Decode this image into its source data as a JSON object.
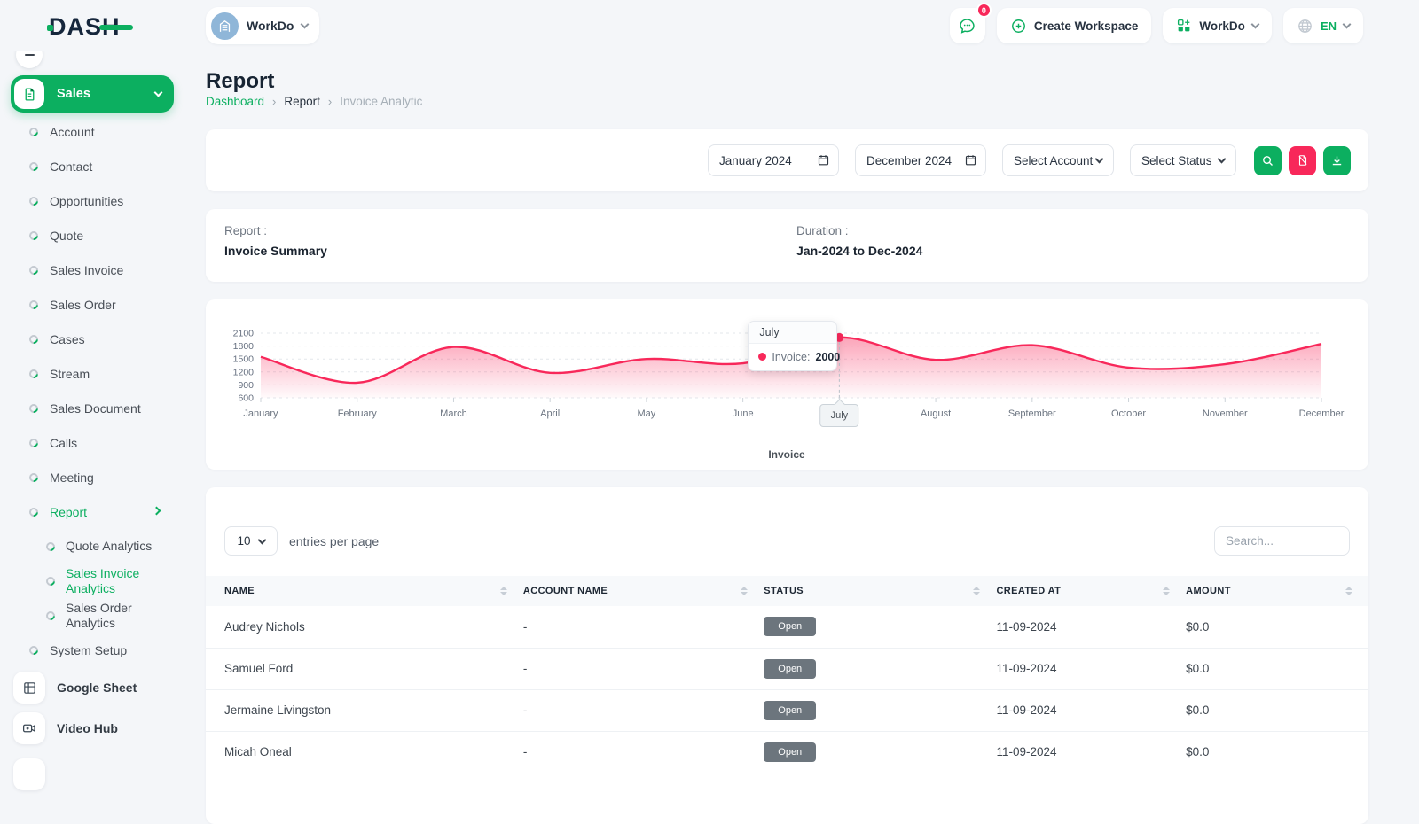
{
  "colors": {
    "primary_green": "#0CAF60",
    "accent_pink": "#F8285A",
    "badge_gray": "#6C757D",
    "dark_navy": "#15263C"
  },
  "header": {
    "logo_text": "DASH",
    "workspace": {
      "name": "WorkDo"
    },
    "chat_badge": "0",
    "create_workspace_label": "Create Workspace",
    "app_menu_label": "WorkDo",
    "language_label": "EN"
  },
  "sidebar": {
    "group": {
      "label": "Sales"
    },
    "items": [
      {
        "label": "Account"
      },
      {
        "label": "Contact"
      },
      {
        "label": "Opportunities"
      },
      {
        "label": "Quote"
      },
      {
        "label": "Sales Invoice"
      },
      {
        "label": "Sales Order"
      },
      {
        "label": "Cases"
      },
      {
        "label": "Stream"
      },
      {
        "label": "Sales Document"
      },
      {
        "label": "Calls"
      },
      {
        "label": "Meeting"
      }
    ],
    "report": {
      "label": "Report",
      "children": [
        {
          "label": "Quote Analytics"
        },
        {
          "label": "Sales Invoice Analytics",
          "active": true
        },
        {
          "label": "Sales Order Analytics"
        }
      ]
    },
    "system_setup": {
      "label": "System Setup"
    },
    "apps": [
      {
        "label": "Google Sheet"
      },
      {
        "label": "Video Hub"
      }
    ]
  },
  "page": {
    "title": "Report",
    "breadcrumb": [
      "Dashboard",
      "Report",
      "Invoice Analytic"
    ]
  },
  "filters": {
    "start_value": "January 2024",
    "end_value": "December 2024",
    "account_placeholder": "Select Account",
    "status_placeholder": "Select Status"
  },
  "summary": {
    "report_label": "Report :",
    "report_value": "Invoice Summary",
    "duration_label": "Duration :",
    "duration_value": "Jan-2024 to Dec-2024"
  },
  "chart_data": {
    "type": "area",
    "categories": [
      "January",
      "February",
      "March",
      "April",
      "May",
      "June",
      "July",
      "August",
      "September",
      "October",
      "November",
      "December"
    ],
    "series": [
      {
        "name": "Invoice",
        "values": [
          1550,
          950,
          1780,
          1180,
          1500,
          1400,
          2000,
          1480,
          1820,
          1300,
          1380,
          1850
        ]
      }
    ],
    "y_ticks": [
      2100,
      1800,
      1500,
      1200,
      900,
      600
    ],
    "ylim": [
      600,
      2100
    ],
    "grid": "dashed-horizontal",
    "line_color": "#F8285A",
    "legend": {
      "label": "Invoice",
      "position": "bottom"
    },
    "highlight_month": "July",
    "tooltip": {
      "month": "July",
      "series_label": "Invoice:",
      "value": "2000"
    }
  },
  "table": {
    "entries_value": "10",
    "entries_label": "entries per page",
    "search_placeholder": "Search...",
    "columns": [
      "NAME",
      "ACCOUNT NAME",
      "STATUS",
      "CREATED AT",
      "AMOUNT"
    ],
    "rows": [
      {
        "name": "Audrey Nichols",
        "account": "-",
        "status": "Open",
        "created": "11-09-2024",
        "amount": "$0.0"
      },
      {
        "name": "Samuel Ford",
        "account": "-",
        "status": "Open",
        "created": "11-09-2024",
        "amount": "$0.0"
      },
      {
        "name": "Jermaine Livingston",
        "account": "-",
        "status": "Open",
        "created": "11-09-2024",
        "amount": "$0.0"
      },
      {
        "name": "Micah Oneal",
        "account": "-",
        "status": "Open",
        "created": "11-09-2024",
        "amount": "$0.0"
      }
    ]
  }
}
